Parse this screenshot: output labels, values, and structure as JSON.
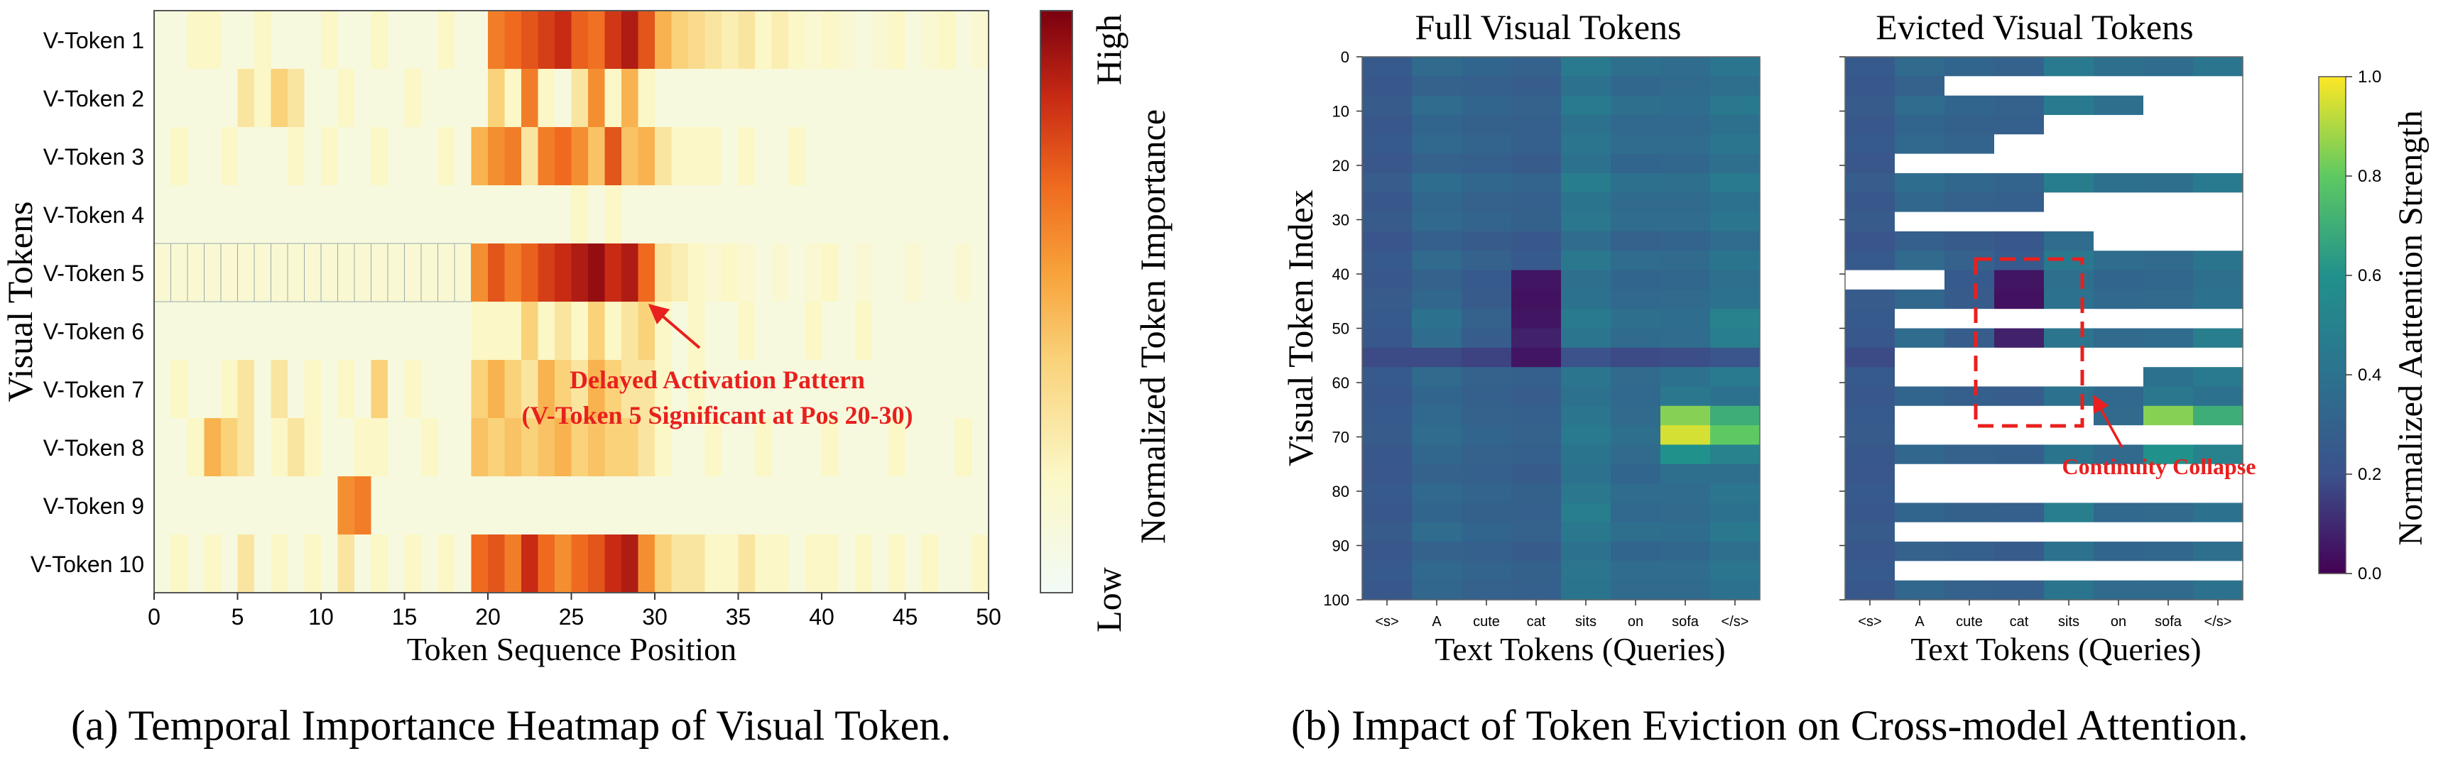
{
  "captions": {
    "a": "(a) Temporal Importance Heatmap of Visual Token.",
    "b": "(b) Impact of Token Eviction on Cross-model Attention."
  },
  "colors": {
    "heat_low": "#f5fbe6",
    "heat_high": "#800010",
    "viridis_low": "#440154",
    "viridis_high": "#fde725",
    "annotation_red": "#e8201e"
  },
  "chart_data": [
    {
      "type": "heatmap",
      "title": "",
      "xlabel": "Token Sequence Position",
      "ylabel": "Visual Tokens",
      "x_ticks": [
        0,
        5,
        10,
        15,
        20,
        25,
        30,
        35,
        40,
        45,
        50
      ],
      "xlim": [
        0,
        50
      ],
      "rows": [
        "V-Token 1",
        "V-Token 2",
        "V-Token 3",
        "V-Token 4",
        "V-Token 5",
        "V-Token 6",
        "V-Token 7",
        "V-Token 8",
        "V-Token 9",
        "V-Token 10"
      ],
      "colorbar": {
        "label": "Normalized Token Importance",
        "high_label": "High",
        "low_label": "Low",
        "colormap": "YlOrRd"
      },
      "values": [
        [
          0.1,
          0.1,
          0.2,
          0.2,
          0.1,
          0.1,
          0.2,
          0.1,
          0.1,
          0.1,
          0.2,
          0.1,
          0.1,
          0.2,
          0.1,
          0.1,
          0.1,
          0.2,
          0.1,
          0.1,
          0.65,
          0.7,
          0.75,
          0.8,
          0.85,
          0.72,
          0.68,
          0.82,
          0.9,
          0.75,
          0.5,
          0.4,
          0.35,
          0.3,
          0.25,
          0.3,
          0.2,
          0.25,
          0.2,
          0.15,
          0.2,
          0.15,
          0.1,
          0.15,
          0.2,
          0.1,
          0.15,
          0.2,
          0.1,
          0.15
        ],
        [
          0.1,
          0.1,
          0.1,
          0.1,
          0.1,
          0.3,
          0.2,
          0.4,
          0.3,
          0.1,
          0.1,
          0.2,
          0.1,
          0.1,
          0.1,
          0.2,
          0.1,
          0.1,
          0.1,
          0.1,
          0.4,
          0.2,
          0.65,
          0.2,
          0.1,
          0.3,
          0.6,
          0.2,
          0.5,
          0.2,
          0.1,
          0.1,
          0.1,
          0.1,
          0.1,
          0.1,
          0.1,
          0.1,
          0.1,
          0.1,
          0.1,
          0.1,
          0.1,
          0.1,
          0.1,
          0.1,
          0.1,
          0.1,
          0.1,
          0.1
        ],
        [
          0.1,
          0.2,
          0.1,
          0.1,
          0.2,
          0.1,
          0.1,
          0.1,
          0.2,
          0.1,
          0.2,
          0.1,
          0.1,
          0.2,
          0.1,
          0.1,
          0.1,
          0.2,
          0.1,
          0.5,
          0.6,
          0.65,
          0.3,
          0.65,
          0.7,
          0.6,
          0.45,
          0.75,
          0.45,
          0.5,
          0.3,
          0.2,
          0.2,
          0.2,
          0.1,
          0.2,
          0.1,
          0.1,
          0.2,
          0.1,
          0.1,
          0.1,
          0.1,
          0.1,
          0.1,
          0.1,
          0.1,
          0.1,
          0.1,
          0.1
        ],
        [
          0.1,
          0.1,
          0.1,
          0.1,
          0.1,
          0.1,
          0.1,
          0.1,
          0.1,
          0.1,
          0.1,
          0.1,
          0.1,
          0.1,
          0.1,
          0.1,
          0.1,
          0.1,
          0.1,
          0.1,
          0.1,
          0.1,
          0.1,
          0.1,
          0.1,
          0.2,
          0.1,
          0.2,
          0.1,
          0.1,
          0.1,
          0.1,
          0.1,
          0.1,
          0.1,
          0.1,
          0.1,
          0.1,
          0.1,
          0.1,
          0.1,
          0.1,
          0.1,
          0.1,
          0.1,
          0.1,
          0.1,
          0.1,
          0.1,
          0.1
        ],
        [
          0.15,
          0.15,
          0.15,
          0.15,
          0.15,
          0.15,
          0.15,
          0.15,
          0.15,
          0.15,
          0.15,
          0.15,
          0.15,
          0.15,
          0.15,
          0.15,
          0.15,
          0.15,
          0.15,
          0.6,
          0.75,
          0.65,
          0.72,
          0.8,
          0.85,
          0.9,
          0.95,
          0.85,
          0.9,
          0.7,
          0.3,
          0.25,
          0.2,
          0.15,
          0.2,
          0.15,
          0.1,
          0.15,
          0.1,
          0.15,
          0.2,
          0.1,
          0.15,
          0.1,
          0.1,
          0.15,
          0.1,
          0.1,
          0.15,
          0.1
        ],
        [
          0.1,
          0.1,
          0.1,
          0.1,
          0.1,
          0.1,
          0.1,
          0.1,
          0.1,
          0.1,
          0.1,
          0.1,
          0.1,
          0.1,
          0.1,
          0.1,
          0.1,
          0.1,
          0.1,
          0.2,
          0.2,
          0.2,
          0.4,
          0.2,
          0.3,
          0.2,
          0.4,
          0.2,
          0.3,
          0.4,
          0.2,
          0.1,
          0.2,
          0.1,
          0.1,
          0.2,
          0.1,
          0.1,
          0.1,
          0.2,
          0.1,
          0.1,
          0.2,
          0.1,
          0.1,
          0.1,
          0.1,
          0.1,
          0.1,
          0.1
        ],
        [
          0.1,
          0.2,
          0.1,
          0.1,
          0.2,
          0.3,
          0.1,
          0.3,
          0.1,
          0.2,
          0.1,
          0.2,
          0.1,
          0.4,
          0.1,
          0.2,
          0.1,
          0.1,
          0.1,
          0.4,
          0.5,
          0.4,
          0.3,
          0.5,
          0.4,
          0.3,
          0.5,
          0.4,
          0.3,
          0.3,
          0.2,
          0.1,
          0.2,
          0.1,
          0.1,
          0.1,
          0.1,
          0.1,
          0.1,
          0.1,
          0.1,
          0.1,
          0.1,
          0.1,
          0.1,
          0.1,
          0.1,
          0.1,
          0.1,
          0.1
        ],
        [
          0.1,
          0.1,
          0.2,
          0.5,
          0.4,
          0.3,
          0.1,
          0.2,
          0.3,
          0.2,
          0.1,
          0.1,
          0.2,
          0.2,
          0.1,
          0.1,
          0.2,
          0.1,
          0.1,
          0.45,
          0.4,
          0.45,
          0.4,
          0.45,
          0.5,
          0.4,
          0.45,
          0.4,
          0.4,
          0.3,
          0.2,
          0.1,
          0.1,
          0.2,
          0.1,
          0.1,
          0.2,
          0.1,
          0.1,
          0.1,
          0.2,
          0.1,
          0.1,
          0.1,
          0.2,
          0.1,
          0.1,
          0.1,
          0.2,
          0.1
        ],
        [
          0.1,
          0.1,
          0.1,
          0.1,
          0.1,
          0.1,
          0.1,
          0.1,
          0.1,
          0.1,
          0.1,
          0.6,
          0.65,
          0.1,
          0.1,
          0.1,
          0.1,
          0.1,
          0.1,
          0.1,
          0.1,
          0.1,
          0.1,
          0.1,
          0.1,
          0.1,
          0.1,
          0.1,
          0.1,
          0.1,
          0.1,
          0.1,
          0.1,
          0.1,
          0.1,
          0.1,
          0.1,
          0.1,
          0.1,
          0.1,
          0.1,
          0.1,
          0.1,
          0.1,
          0.1,
          0.1,
          0.1,
          0.1,
          0.1,
          0.1
        ],
        [
          0.1,
          0.2,
          0.1,
          0.2,
          0.1,
          0.3,
          0.1,
          0.2,
          0.1,
          0.2,
          0.1,
          0.3,
          0.1,
          0.2,
          0.1,
          0.2,
          0.1,
          0.2,
          0.1,
          0.7,
          0.75,
          0.65,
          0.85,
          0.7,
          0.6,
          0.7,
          0.75,
          0.85,
          0.9,
          0.6,
          0.4,
          0.3,
          0.3,
          0.2,
          0.2,
          0.3,
          0.2,
          0.2,
          0.1,
          0.2,
          0.2,
          0.1,
          0.2,
          0.1,
          0.2,
          0.1,
          0.2,
          0.1,
          0.1,
          0.2
        ]
      ],
      "annotation": {
        "line1": "Delayed Activation Pattern",
        "line2": "(V-Token 5 Significant at Pos 20-30)"
      }
    },
    {
      "type": "heatmap",
      "title": "Full Visual Tokens",
      "xlabel": "Text Tokens (Queries)",
      "ylabel": "Visual Token Index",
      "x_categories": [
        "<s>",
        "A",
        "cute",
        "cat",
        "sits",
        "on",
        "sofa",
        "</s>"
      ],
      "y_ticks": [
        0,
        10,
        20,
        30,
        40,
        50,
        60,
        70,
        80,
        90,
        100
      ],
      "ylim": [
        0,
        100
      ],
      "colorbar": {
        "label": "Normalized Aattention Strength",
        "ticks": [
          "0.0",
          "0.2",
          "0.4",
          "0.6",
          "0.8",
          "1.0"
        ],
        "range": [
          0,
          1
        ],
        "colormap": "viridis"
      },
      "cells": [
        [
          0.25,
          0.35,
          0.32,
          0.3,
          0.45,
          0.38,
          0.36,
          0.42
        ],
        [
          0.24,
          0.3,
          0.28,
          0.27,
          0.4,
          0.33,
          0.35,
          0.38
        ],
        [
          0.26,
          0.36,
          0.32,
          0.3,
          0.45,
          0.38,
          0.37,
          0.44
        ],
        [
          0.24,
          0.32,
          0.29,
          0.28,
          0.4,
          0.34,
          0.34,
          0.39
        ],
        [
          0.25,
          0.34,
          0.31,
          0.28,
          0.42,
          0.36,
          0.36,
          0.42
        ],
        [
          0.23,
          0.3,
          0.28,
          0.26,
          0.4,
          0.32,
          0.33,
          0.38
        ],
        [
          0.27,
          0.37,
          0.33,
          0.31,
          0.47,
          0.39,
          0.38,
          0.45
        ],
        [
          0.24,
          0.33,
          0.3,
          0.28,
          0.41,
          0.35,
          0.35,
          0.4
        ],
        [
          0.26,
          0.34,
          0.31,
          0.29,
          0.43,
          0.36,
          0.36,
          0.42
        ],
        [
          0.22,
          0.28,
          0.26,
          0.24,
          0.36,
          0.3,
          0.31,
          0.36
        ],
        [
          0.25,
          0.35,
          0.3,
          0.25,
          0.44,
          0.36,
          0.35,
          0.41
        ],
        [
          0.24,
          0.3,
          0.25,
          0.05,
          0.38,
          0.32,
          0.33,
          0.38
        ],
        [
          0.26,
          0.33,
          0.26,
          0.04,
          0.4,
          0.34,
          0.35,
          0.4
        ],
        [
          0.25,
          0.4,
          0.3,
          0.05,
          0.45,
          0.38,
          0.37,
          0.5
        ],
        [
          0.24,
          0.36,
          0.27,
          0.08,
          0.42,
          0.35,
          0.36,
          0.48
        ],
        [
          0.18,
          0.18,
          0.16,
          0.05,
          0.2,
          0.18,
          0.19,
          0.22
        ],
        [
          0.25,
          0.35,
          0.3,
          0.28,
          0.42,
          0.35,
          0.4,
          0.45
        ],
        [
          0.24,
          0.32,
          0.28,
          0.27,
          0.4,
          0.34,
          0.44,
          0.4
        ],
        [
          0.25,
          0.34,
          0.3,
          0.28,
          0.42,
          0.35,
          0.85,
          0.7
        ],
        [
          0.26,
          0.36,
          0.32,
          0.3,
          0.45,
          0.38,
          0.95,
          0.8
        ],
        [
          0.24,
          0.33,
          0.3,
          0.28,
          0.41,
          0.35,
          0.6,
          0.5
        ],
        [
          0.23,
          0.3,
          0.28,
          0.26,
          0.4,
          0.32,
          0.38,
          0.38
        ],
        [
          0.25,
          0.34,
          0.31,
          0.29,
          0.43,
          0.36,
          0.36,
          0.42
        ],
        [
          0.24,
          0.32,
          0.29,
          0.28,
          0.48,
          0.34,
          0.35,
          0.4
        ],
        [
          0.26,
          0.36,
          0.32,
          0.3,
          0.44,
          0.38,
          0.37,
          0.44
        ],
        [
          0.23,
          0.3,
          0.28,
          0.26,
          0.4,
          0.32,
          0.33,
          0.38
        ],
        [
          0.25,
          0.34,
          0.31,
          0.29,
          0.42,
          0.36,
          0.36,
          0.42
        ],
        [
          0.24,
          0.33,
          0.3,
          0.28,
          0.41,
          0.35,
          0.35,
          0.4
        ]
      ]
    },
    {
      "type": "heatmap",
      "title": "Evicted Visual Tokens",
      "xlabel": "Text Tokens (Queries)",
      "x_categories": [
        "<s>",
        "A",
        "cute",
        "cat",
        "sits",
        "on",
        "sofa",
        "</s>"
      ],
      "y_ticks": [
        0,
        10,
        20,
        30,
        40,
        50,
        60,
        70,
        80,
        90,
        100
      ],
      "ylim": [
        0,
        100
      ],
      "annotation": "Continuity Collapse"
    }
  ]
}
